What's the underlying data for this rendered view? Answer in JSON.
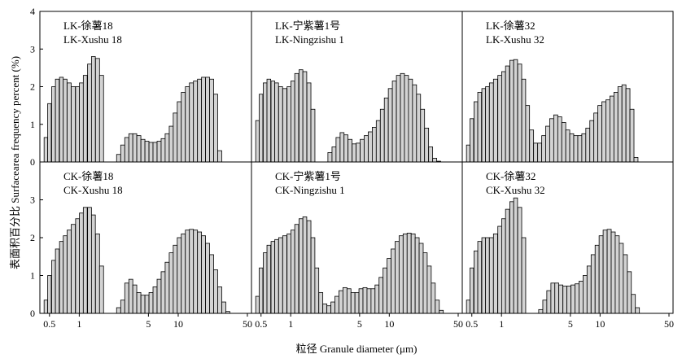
{
  "chart_data": {
    "type": "bar",
    "ylabel": "表面积百分比 Surfacearea frequency percent (%)",
    "xlabel": "粒径 Granule diameter (μm)",
    "ylim": [
      0,
      4
    ],
    "yticks": [
      "0",
      "1",
      "2",
      "3",
      "4"
    ],
    "xscale": "log",
    "xlim": [
      0.4,
      55
    ],
    "xticks": [
      "0.5",
      "1",
      "5",
      "10",
      "50"
    ],
    "bar_fill": "#d3d3d3",
    "bar_stroke": "#000000",
    "panels": [
      {
        "label_line1": "LK-徐薯18",
        "label_line2": "LK-Xushu 18",
        "x": [
          0.46,
          0.5,
          0.55,
          0.6,
          0.66,
          0.72,
          0.79,
          0.87,
          0.96,
          1.05,
          1.15,
          1.27,
          1.39,
          1.53,
          1.68,
          2.5,
          2.75,
          3.02,
          3.32,
          3.64,
          4.0,
          4.4,
          4.83,
          5.31,
          5.83,
          6.41,
          7.04,
          7.73,
          8.5,
          9.33,
          10.25,
          11.26,
          12.38,
          13.6,
          14.94,
          16.41,
          18.03,
          19.81,
          21.76,
          23.91,
          26.27
        ],
        "values": [
          0.65,
          1.55,
          2.0,
          2.2,
          2.25,
          2.2,
          2.1,
          2.0,
          2.0,
          2.1,
          2.3,
          2.6,
          2.8,
          2.75,
          2.3,
          0.2,
          0.45,
          0.65,
          0.75,
          0.75,
          0.7,
          0.6,
          0.55,
          0.52,
          0.52,
          0.55,
          0.62,
          0.75,
          0.95,
          1.3,
          1.6,
          1.85,
          2.0,
          2.1,
          2.15,
          2.2,
          2.25,
          2.25,
          2.2,
          1.8,
          0.3
        ]
      },
      {
        "label_line1": "LK-宁紫薯1号",
        "label_line2": "LK-Ningzishu 1",
        "x": [
          0.46,
          0.5,
          0.55,
          0.6,
          0.66,
          0.72,
          0.79,
          0.87,
          0.96,
          1.05,
          1.15,
          1.27,
          1.39,
          1.53,
          1.68,
          2.5,
          2.75,
          3.02,
          3.32,
          3.64,
          4.0,
          4.4,
          4.83,
          5.31,
          5.83,
          6.41,
          7.04,
          7.73,
          8.5,
          9.33,
          10.25,
          11.26,
          12.38,
          13.6,
          14.94,
          16.41,
          18.03,
          19.81,
          21.76,
          23.91,
          26.27,
          28.87,
          31.71
        ],
        "values": [
          1.1,
          1.8,
          2.1,
          2.2,
          2.15,
          2.1,
          2.0,
          1.95,
          2.0,
          2.15,
          2.35,
          2.45,
          2.4,
          2.1,
          1.4,
          0.25,
          0.4,
          0.65,
          0.78,
          0.72,
          0.6,
          0.48,
          0.5,
          0.6,
          0.7,
          0.8,
          0.92,
          1.1,
          1.4,
          1.7,
          1.95,
          2.15,
          2.3,
          2.35,
          2.3,
          2.2,
          2.05,
          1.8,
          1.4,
          0.9,
          0.4,
          0.1,
          0.02
        ]
      },
      {
        "label_line1": "LK-徐薯32",
        "label_line2": "LK-Xushu 32",
        "x": [
          0.46,
          0.5,
          0.55,
          0.6,
          0.66,
          0.72,
          0.79,
          0.87,
          0.96,
          1.05,
          1.15,
          1.27,
          1.39,
          1.53,
          1.68,
          1.84,
          2.02,
          2.22,
          2.44,
          2.68,
          2.94,
          3.23,
          3.55,
          3.9,
          4.28,
          4.7,
          5.16,
          5.67,
          6.23,
          6.84,
          7.51,
          8.25,
          9.06,
          9.95,
          10.93,
          12.0,
          13.18,
          14.48,
          15.9,
          17.47,
          19.18,
          21.07,
          23.14
        ],
        "values": [
          0.45,
          1.15,
          1.6,
          1.85,
          1.95,
          2.0,
          2.1,
          2.2,
          2.3,
          2.4,
          2.55,
          2.7,
          2.72,
          2.6,
          2.2,
          1.5,
          0.85,
          0.5,
          0.5,
          0.7,
          0.95,
          1.15,
          1.25,
          1.2,
          1.05,
          0.85,
          0.75,
          0.7,
          0.7,
          0.75,
          0.9,
          1.1,
          1.3,
          1.5,
          1.6,
          1.65,
          1.75,
          1.85,
          2.0,
          2.05,
          1.95,
          1.4,
          0.12
        ]
      },
      {
        "label_line1": "CK-徐薯18",
        "label_line2": "CK-Xushu 18",
        "x": [
          0.46,
          0.5,
          0.55,
          0.6,
          0.66,
          0.72,
          0.79,
          0.87,
          0.96,
          1.05,
          1.15,
          1.27,
          1.39,
          1.53,
          1.68,
          2.5,
          2.75,
          3.02,
          3.32,
          3.64,
          4.0,
          4.4,
          4.83,
          5.31,
          5.83,
          6.41,
          7.04,
          7.73,
          8.5,
          9.33,
          10.25,
          11.26,
          12.38,
          13.6,
          14.94,
          16.41,
          18.03,
          19.81,
          21.76,
          23.91,
          26.27,
          28.87,
          31.71
        ],
        "values": [
          0.35,
          1.0,
          1.4,
          1.7,
          1.9,
          2.05,
          2.2,
          2.35,
          2.5,
          2.65,
          2.8,
          2.8,
          2.6,
          2.1,
          1.25,
          0.15,
          0.35,
          0.8,
          0.9,
          0.75,
          0.55,
          0.48,
          0.48,
          0.55,
          0.7,
          0.9,
          1.1,
          1.35,
          1.6,
          1.8,
          2.0,
          2.1,
          2.2,
          2.22,
          2.2,
          2.15,
          2.05,
          1.85,
          1.55,
          1.15,
          0.7,
          0.3,
          0.05
        ]
      },
      {
        "label_line1": "CK-宁紫薯1号",
        "label_line2": "CK-Ningzishu 1",
        "x": [
          0.46,
          0.5,
          0.55,
          0.6,
          0.66,
          0.72,
          0.79,
          0.87,
          0.96,
          1.05,
          1.15,
          1.27,
          1.39,
          1.53,
          1.68,
          1.84,
          2.02,
          2.22,
          2.44,
          2.68,
          2.94,
          3.23,
          3.55,
          3.9,
          4.28,
          4.7,
          5.16,
          5.67,
          6.23,
          6.84,
          7.51,
          8.25,
          9.06,
          9.95,
          10.93,
          12.0,
          13.18,
          14.48,
          15.9,
          17.47,
          19.18,
          21.07,
          23.14,
          25.42,
          27.92,
          30.67,
          33.69
        ],
        "values": [
          0.45,
          1.2,
          1.6,
          1.8,
          1.9,
          1.95,
          2.0,
          2.05,
          2.1,
          2.2,
          2.35,
          2.5,
          2.55,
          2.45,
          2.0,
          1.2,
          0.55,
          0.25,
          0.2,
          0.3,
          0.45,
          0.6,
          0.68,
          0.65,
          0.55,
          0.55,
          0.65,
          0.68,
          0.65,
          0.65,
          0.75,
          0.95,
          1.2,
          1.45,
          1.7,
          1.9,
          2.05,
          2.1,
          2.12,
          2.1,
          2.0,
          1.85,
          1.6,
          1.25,
          0.8,
          0.35,
          0.08
        ]
      },
      {
        "label_line1": "CK-徐薯32",
        "label_line2": "CK-Xushu 32",
        "x": [
          0.46,
          0.5,
          0.55,
          0.6,
          0.66,
          0.72,
          0.79,
          0.87,
          0.96,
          1.05,
          1.15,
          1.27,
          1.39,
          1.53,
          1.68,
          2.5,
          2.75,
          3.02,
          3.32,
          3.64,
          4.0,
          4.4,
          4.83,
          5.31,
          5.83,
          6.41,
          7.04,
          7.73,
          8.5,
          9.33,
          10.25,
          11.26,
          12.38,
          13.6,
          14.94,
          16.41,
          18.03,
          19.81,
          21.76,
          23.91
        ],
        "values": [
          0.35,
          1.2,
          1.65,
          1.9,
          2.0,
          2.0,
          2.0,
          2.1,
          2.3,
          2.5,
          2.75,
          2.95,
          3.05,
          2.8,
          2.0,
          0.1,
          0.35,
          0.6,
          0.8,
          0.8,
          0.75,
          0.72,
          0.72,
          0.75,
          0.78,
          0.85,
          1.0,
          1.25,
          1.55,
          1.8,
          2.05,
          2.2,
          2.22,
          2.15,
          2.05,
          1.85,
          1.55,
          1.1,
          0.5,
          0.15
        ]
      }
    ]
  }
}
